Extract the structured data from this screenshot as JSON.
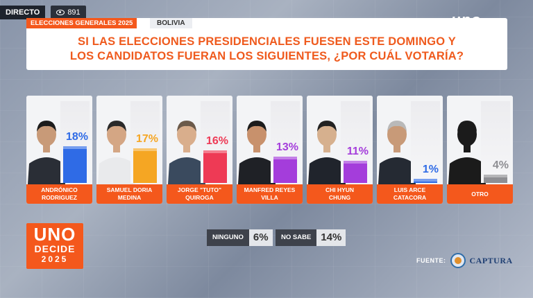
{
  "live": {
    "label": "DIRECTO",
    "viewers": "891"
  },
  "header": {
    "election_tag": "ELECCIONES GENERALES 2025",
    "country_tag": "BOLIVIA",
    "question_line1": "SI LAS ELECCIONES PRESIDENCIALES FUESEN ESTE DOMINGO Y",
    "question_line2": "LOS CANDIDATOS FUERAN LOS SIGUIENTES, ¿POR CUÁL VOTARÍA?"
  },
  "logo": {
    "text": "uno"
  },
  "branding": {
    "line1": "UNO",
    "line2": "DECIDE",
    "line3": "2025"
  },
  "extras": [
    {
      "label": "NINGUNO",
      "value": "6%"
    },
    {
      "label": "NO SABE",
      "value": "14%"
    }
  ],
  "source": {
    "label": "FUENTE:",
    "brand": "CAPTURA"
  },
  "colors": {
    "accent": "#f4581c"
  },
  "chart_data": {
    "type": "bar",
    "categories": [
      "ANDRÓNICO\nRODRIGUEZ",
      "SAMUEL DORIA\nMEDINA",
      "JORGE \"TUTO\"\nQUIROGA",
      "MANFRED REYES\nVILLA",
      "CHI HYUN\nCHUNG",
      "LUIS ARCE\nCATACORA",
      "OTRO"
    ],
    "values": [
      18,
      17,
      16,
      13,
      11,
      1,
      4
    ],
    "labels": [
      "18%",
      "17%",
      "16%",
      "13%",
      "11%",
      "1%",
      "4%"
    ],
    "colors": [
      "#2f6be6",
      "#f5a623",
      "#ee3a55",
      "#a43ddb",
      "#a43ddb",
      "#2f6be6",
      "#8e8e93"
    ],
    "ylim": [
      0,
      40
    ]
  }
}
